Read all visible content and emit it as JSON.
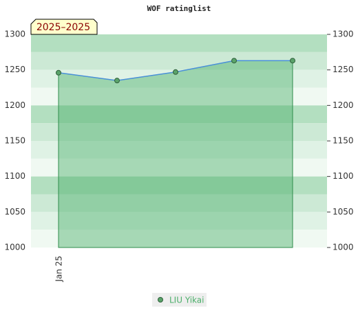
{
  "chart_data": {
    "type": "line",
    "title": "WOF ratinglist",
    "badge": "2025–2025",
    "categories": [
      "Jan 25",
      null,
      null,
      null,
      null
    ],
    "series": [
      {
        "name": "LIU Yikai",
        "color": "#4a90d9",
        "marker_color": "#5aa36a",
        "fill_color": "#4caf6a",
        "values": [
          1246,
          1235,
          1247,
          1263,
          1263
        ]
      }
    ],
    "ylim": [
      1000,
      1300
    ],
    "yticks": [
      1000,
      1050,
      1100,
      1150,
      1200,
      1250,
      1300
    ],
    "legend": "bottom"
  }
}
